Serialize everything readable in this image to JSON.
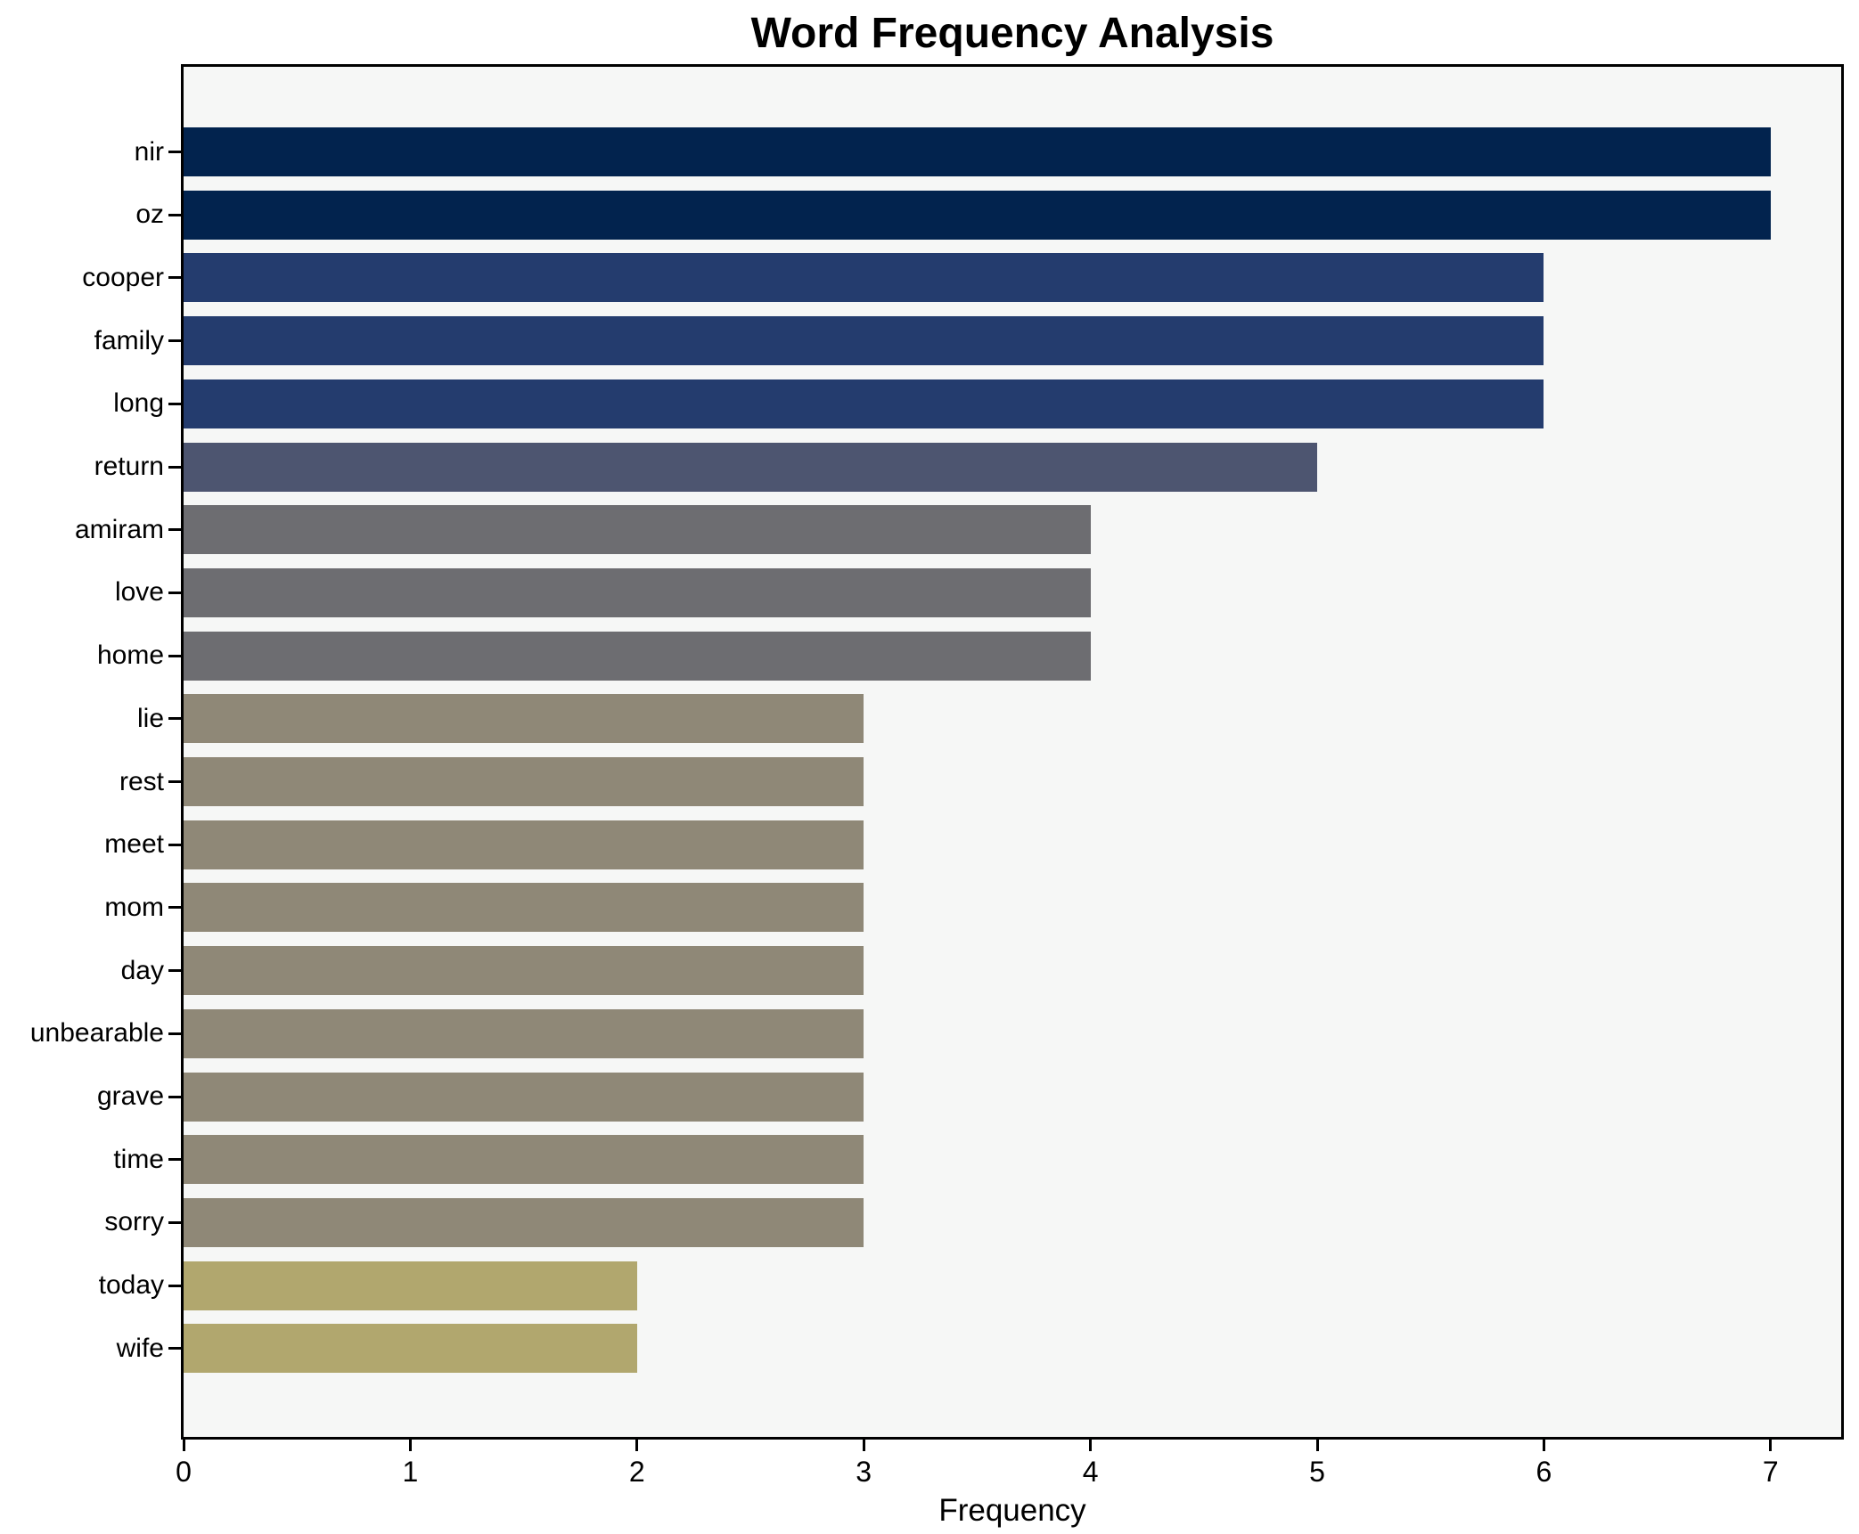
{
  "chart_data": {
    "type": "bar",
    "orientation": "horizontal",
    "title": "Word Frequency Analysis",
    "xlabel": "Frequency",
    "ylabel": "",
    "xlim": [
      0,
      7.31
    ],
    "xticks": [
      0,
      1,
      2,
      3,
      4,
      5,
      6,
      7
    ],
    "grid": false,
    "legend": null,
    "categories": [
      "nir",
      "oz",
      "cooper",
      "family",
      "long",
      "return",
      "amiram",
      "love",
      "home",
      "lie",
      "rest",
      "meet",
      "mom",
      "day",
      "unbearable",
      "grave",
      "time",
      "sorry",
      "today",
      "wife"
    ],
    "values": [
      7,
      7,
      6,
      6,
      6,
      5,
      4,
      4,
      4,
      3,
      3,
      3,
      3,
      3,
      3,
      3,
      3,
      3,
      2,
      2
    ],
    "bar_colors": [
      "#02234e",
      "#02234e",
      "#243c6e",
      "#243c6e",
      "#243c6e",
      "#4d5570",
      "#6d6d71",
      "#6d6d71",
      "#6d6d71",
      "#8f8877",
      "#8f8877",
      "#8f8877",
      "#8f8877",
      "#8f8877",
      "#8f8877",
      "#8f8877",
      "#8f8877",
      "#8f8877",
      "#b1a76e",
      "#b1a76e"
    ],
    "colors": {
      "plot_background": "#f6f7f6",
      "figure_background": "#ffffff",
      "spine": "#000000",
      "text": "#000000"
    }
  }
}
